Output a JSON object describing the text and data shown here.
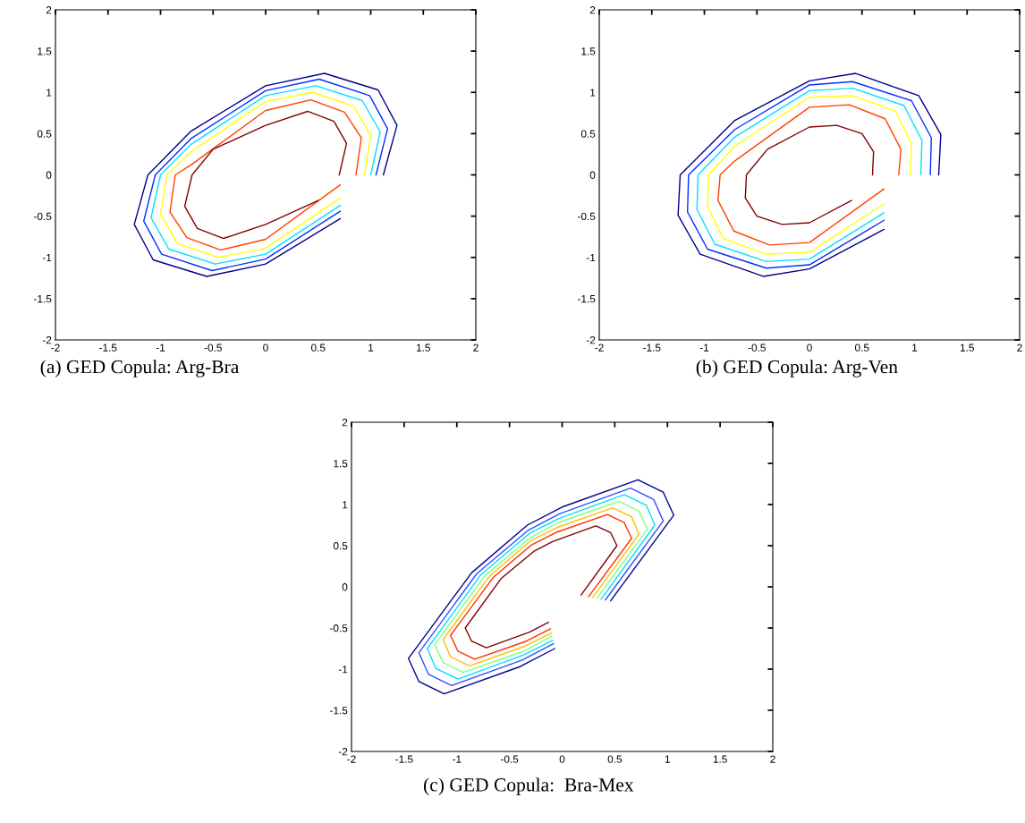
{
  "chart_data": [
    {
      "type": "line",
      "xlabel": "(a) GED Copula: Arg-Bra",
      "xlim": [
        -2,
        2
      ],
      "ylim": [
        -2,
        2
      ],
      "xticks": [
        -2,
        -1.5,
        -1,
        -0.5,
        0,
        0.5,
        1,
        1.5,
        2
      ],
      "yticks": [
        -2,
        -1.5,
        -1,
        -0.5,
        0,
        0.5,
        1,
        1.5,
        2
      ],
      "grid": false,
      "series": [
        {
          "color": "#00008f",
          "x": [
            1.12,
            1.25,
            1.07,
            0.56,
            0,
            -0.71,
            -1.12,
            -1.25,
            -1.07,
            -0.56,
            0,
            0.71
          ],
          "values": [
            0,
            0.6,
            1.03,
            1.23,
            1.08,
            0.53,
            0,
            -0.6,
            -1.03,
            -1.23,
            -1.08,
            -0.53
          ]
        },
        {
          "color": "#0030ff",
          "x": [
            1.05,
            1.16,
            0.99,
            0.51,
            0,
            -0.71,
            -1.05,
            -1.16,
            -0.99,
            -0.51,
            0,
            0.71
          ],
          "values": [
            0,
            0.56,
            0.96,
            1.16,
            1.02,
            0.44,
            0,
            -0.56,
            -0.96,
            -1.16,
            -1.02,
            -0.44
          ]
        },
        {
          "color": "#00e0ff",
          "x": [
            1.0,
            1.09,
            0.92,
            0.48,
            0,
            -0.71,
            -1.0,
            -1.09,
            -0.92,
            -0.48,
            0,
            0.71
          ],
          "values": [
            0,
            0.52,
            0.9,
            1.08,
            0.96,
            0.37,
            0,
            -0.52,
            -0.9,
            -1.08,
            -0.96,
            -0.37
          ]
        },
        {
          "color": "#ffff00",
          "x": [
            0.94,
            1.0,
            0.84,
            0.45,
            0,
            -0.71,
            -0.94,
            -1.0,
            -0.84,
            -0.45,
            0,
            0.71
          ],
          "values": [
            0,
            0.48,
            0.83,
            1.0,
            0.89,
            0.28,
            0,
            -0.48,
            -0.83,
            -1.0,
            -0.89,
            -0.28
          ]
        },
        {
          "color": "#ff4000",
          "x": [
            0.86,
            0.91,
            0.75,
            0.43,
            0,
            -0.71,
            -0.86,
            -0.91,
            -0.75,
            -0.43,
            0,
            0.71
          ],
          "values": [
            0,
            0.45,
            0.76,
            0.91,
            0.78,
            0.12,
            0,
            -0.45,
            -0.76,
            -0.91,
            -0.78,
            -0.12
          ]
        },
        {
          "color": "#800000",
          "x": [
            0.7,
            0.77,
            0.65,
            0.4,
            0,
            -0.5,
            -0.7,
            -0.77,
            -0.65,
            -0.4,
            0,
            0.5
          ],
          "values": [
            0,
            0.38,
            0.65,
            0.77,
            0.6,
            0.31,
            0,
            -0.38,
            -0.65,
            -0.77,
            -0.6,
            -0.31
          ]
        }
      ]
    },
    {
      "type": "line",
      "xlabel": "(b) GED Copula: Arg-Ven",
      "xlim": [
        -2,
        2
      ],
      "ylim": [
        -2,
        2
      ],
      "xticks": [
        -2,
        -1.5,
        -1,
        -0.5,
        0,
        0.5,
        1,
        1.5,
        2
      ],
      "yticks": [
        -2,
        -1.5,
        -1,
        -0.5,
        0,
        0.5,
        1,
        1.5,
        2
      ],
      "grid": false,
      "series": [
        {
          "color": "#00008f",
          "x": [
            1.23,
            1.25,
            1.04,
            0.44,
            0,
            -0.71,
            -1.23,
            -1.25,
            -1.04,
            -0.44,
            0,
            0.71
          ],
          "values": [
            0,
            0.49,
            0.96,
            1.23,
            1.14,
            0.66,
            0,
            -0.49,
            -0.96,
            -1.23,
            -1.14,
            -0.66
          ]
        },
        {
          "color": "#0030ff",
          "x": [
            1.15,
            1.16,
            0.97,
            0.41,
            0,
            -0.71,
            -1.15,
            -1.16,
            -0.97,
            -0.41,
            0,
            0.71
          ],
          "values": [
            0,
            0.45,
            0.9,
            1.13,
            1.09,
            0.55,
            0,
            -0.45,
            -0.9,
            -1.13,
            -1.09,
            -0.55
          ]
        },
        {
          "color": "#00e0ff",
          "x": [
            1.06,
            1.07,
            0.9,
            0.41,
            0,
            -0.71,
            -1.06,
            -1.07,
            -0.9,
            -0.41,
            0,
            0.71
          ],
          "values": [
            0,
            0.42,
            0.84,
            1.05,
            1.02,
            0.46,
            0,
            -0.42,
            -0.84,
            -1.05,
            -1.02,
            -0.46
          ]
        },
        {
          "color": "#ffff00",
          "x": [
            0.96,
            0.97,
            0.82,
            0.41,
            0,
            -0.71,
            -0.96,
            -0.97,
            -0.82,
            -0.41,
            0,
            0.71
          ],
          "values": [
            0,
            0.38,
            0.77,
            0.96,
            0.94,
            0.35,
            0,
            -0.38,
            -0.77,
            -0.96,
            -0.94,
            -0.35
          ]
        },
        {
          "color": "#ff4000",
          "x": [
            0.85,
            0.87,
            0.72,
            0.38,
            0,
            -0.71,
            -0.85,
            -0.87,
            -0.72,
            -0.38,
            0,
            0.71
          ],
          "values": [
            0,
            0.31,
            0.68,
            0.85,
            0.82,
            0.17,
            0,
            -0.31,
            -0.68,
            -0.85,
            -0.82,
            -0.17
          ]
        },
        {
          "color": "#800000",
          "x": [
            0.6,
            0.61,
            0.5,
            0.26,
            0,
            -0.4,
            -0.6,
            -0.61,
            -0.5,
            -0.26,
            0,
            0.4
          ],
          "values": [
            0,
            0.28,
            0.5,
            0.6,
            0.58,
            0.31,
            0,
            -0.28,
            -0.5,
            -0.6,
            -0.58,
            -0.31
          ]
        }
      ]
    },
    {
      "type": "line",
      "xlabel": "(c) GED Copula:  Bra-Mex",
      "xlim": [
        -2,
        2
      ],
      "ylim": [
        -2,
        2
      ],
      "xticks": [
        -2,
        -1.5,
        -1,
        -0.5,
        0,
        0.5,
        1,
        1.5,
        2
      ],
      "yticks": [
        -2,
        -1.5,
        -1,
        -0.5,
        0,
        0.5,
        1,
        1.5,
        2
      ],
      "grid": false,
      "series": [
        {
          "color": "#00008f",
          "x": [
            0.46,
            1.06,
            0.96,
            0.72,
            0,
            -0.33,
            -0.86,
            -1.46,
            -1.36,
            -1.12,
            -0.4,
            -0.07
          ],
          "values": [
            -0.17,
            0.87,
            1.15,
            1.3,
            0.97,
            0.75,
            0.17,
            -0.87,
            -1.15,
            -1.3,
            -0.97,
            -0.75
          ]
        },
        {
          "color": "#3050ff",
          "x": [
            0.41,
            0.96,
            0.87,
            0.65,
            -0.02,
            -0.32,
            -0.81,
            -1.36,
            -1.27,
            -1.05,
            -0.38,
            -0.08
          ],
          "values": [
            -0.16,
            0.8,
            1.06,
            1.2,
            0.89,
            0.69,
            0.16,
            -0.8,
            -1.06,
            -1.2,
            -0.89,
            -0.69
          ]
        },
        {
          "color": "#00dfff",
          "x": [
            0.37,
            0.88,
            0.8,
            0.59,
            -0.03,
            -0.31,
            -0.77,
            -1.28,
            -1.2,
            -0.99,
            -0.37,
            -0.09
          ],
          "values": [
            -0.15,
            0.75,
            0.99,
            1.12,
            0.83,
            0.65,
            0.15,
            -0.75,
            -0.99,
            -1.12,
            -0.83,
            -0.65
          ]
        },
        {
          "color": "#80ff80",
          "x": [
            0.33,
            0.81,
            0.73,
            0.54,
            -0.04,
            -0.3,
            -0.73,
            -1.21,
            -1.13,
            -0.94,
            -0.36,
            -0.1
          ],
          "values": [
            -0.14,
            0.7,
            0.92,
            1.04,
            0.78,
            0.6,
            0.14,
            -0.7,
            -0.92,
            -1.04,
            -0.78,
            -0.6
          ]
        },
        {
          "color": "#ffbf00",
          "x": [
            0.29,
            0.73,
            0.66,
            0.48,
            -0.05,
            -0.3,
            -0.69,
            -1.13,
            -1.06,
            -0.88,
            -0.35,
            -0.1
          ],
          "values": [
            -0.13,
            0.64,
            0.85,
            0.96,
            0.72,
            0.56,
            0.13,
            -0.64,
            -0.85,
            -0.96,
            -0.72,
            -0.56
          ]
        },
        {
          "color": "#ff3000",
          "x": [
            0.25,
            0.66,
            0.59,
            0.43,
            -0.06,
            -0.29,
            -0.65,
            -1.06,
            -0.99,
            -0.83,
            -0.34,
            -0.11
          ],
          "values": [
            -0.12,
            0.59,
            0.78,
            0.88,
            0.66,
            0.51,
            0.12,
            -0.59,
            -0.78,
            -0.88,
            -0.66,
            -0.51
          ]
        },
        {
          "color": "#800000",
          "x": [
            0.18,
            0.52,
            0.46,
            0.32,
            -0.09,
            -0.27,
            -0.58,
            -0.92,
            -0.86,
            -0.72,
            -0.31,
            -0.13
          ],
          "values": [
            -0.1,
            0.5,
            0.66,
            0.74,
            0.55,
            0.43,
            0.1,
            -0.5,
            -0.66,
            -0.74,
            -0.55,
            -0.43
          ]
        }
      ]
    }
  ]
}
